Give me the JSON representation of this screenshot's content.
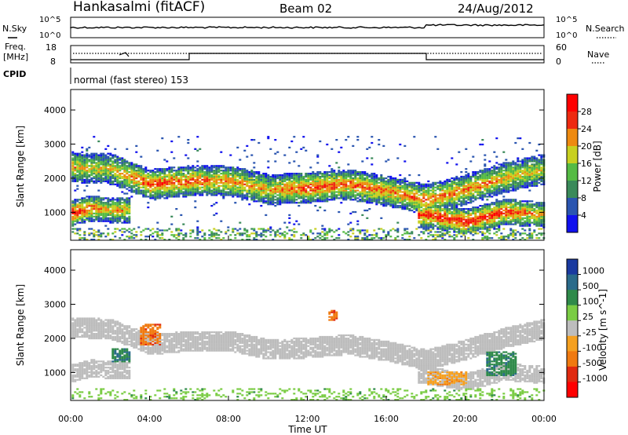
{
  "header": {
    "radar": "Hankasalmi (fitACF)",
    "beam": "Beam 02",
    "date": "24/Aug/2012"
  },
  "noise_panel": {
    "left_label": "N.Sky",
    "right_label": "N.Search",
    "left_ticks": [
      "10^5",
      "10^0"
    ],
    "right_ticks": [
      "10^5",
      "10^0"
    ]
  },
  "freq_panel": {
    "left_label_1": "Freq.",
    "left_label_2": "[MHz]",
    "left_ticks": [
      "18",
      "8"
    ],
    "right_label": "Nave",
    "right_ticks": [
      "60",
      "0"
    ]
  },
  "cpid": {
    "label": "CPID",
    "text": "normal (fast stereo) 153"
  },
  "axes": {
    "ylabel": "Slant Range [km]",
    "xlabel": "Time UT",
    "yticks": [
      "1000",
      "2000",
      "3000",
      "4000"
    ],
    "xticks": [
      "00:00",
      "04:00",
      "08:00",
      "12:00",
      "16:00",
      "20:00",
      "00:00"
    ]
  },
  "power_scale": {
    "title": "Power [dB]",
    "ticks": [
      "4",
      "8",
      "12",
      "16",
      "20",
      "24",
      "28"
    ],
    "colors": [
      "#1010ee",
      "#2a55b0",
      "#3a8a5a",
      "#55bb44",
      "#c8d020",
      "#ee8a10",
      "#ee2a10",
      "#ff0000"
    ]
  },
  "velocity_scale": {
    "title": "Velocity [m s^-1]",
    "ticks": [
      "1000",
      "500",
      "100",
      "25",
      "-25",
      "-100",
      "-500",
      "-1000"
    ],
    "colors": [
      "#1a3aa0",
      "#2a6a8a",
      "#2f8a4a",
      "#7acc44",
      "#bdbdbd",
      "#f5a020",
      "#f07a10",
      "#e02a10",
      "#ff0000"
    ]
  },
  "chart_data": [
    {
      "type": "heatmap",
      "title": "Power [dB]",
      "xlabel": "Time UT",
      "ylabel": "Slant Range [km]",
      "xlim": [
        0,
        24
      ],
      "ylim": [
        180,
        4600
      ],
      "colorbar_range": [
        0,
        30
      ],
      "main_band": {
        "hours": [
          0,
          2,
          4,
          6,
          8,
          10,
          12,
          14,
          16,
          18,
          20,
          22,
          24
        ],
        "center_km": [
          2300,
          2250,
          1800,
          1900,
          1900,
          1650,
          1700,
          1800,
          1600,
          1350,
          1650,
          2000,
          2250
        ],
        "peak_power_db": [
          20,
          18,
          26,
          24,
          22,
          20,
          26,
          24,
          22,
          24,
          22,
          20,
          18
        ]
      },
      "lower_band": {
        "hours": [
          0,
          1,
          2,
          18,
          20,
          22,
          24
        ],
        "center_km": [
          950,
          1100,
          1050,
          900,
          700,
          1000,
          900
        ],
        "peak_power_db": [
          28,
          24,
          20,
          26,
          28,
          26,
          20
        ]
      }
    },
    {
      "type": "heatmap",
      "title": "Velocity [m s^-1]",
      "xlabel": "Time UT",
      "ylabel": "Slant Range [km]",
      "xlim": [
        0,
        24
      ],
      "ylim": [
        180,
        4600
      ],
      "colorbar_ticks": [
        1000,
        500,
        100,
        25,
        -25,
        -100,
        -500,
        -1000
      ],
      "dominant_velocity": "-25 to 25 (ground scatter)",
      "features": [
        {
          "hours": [
            3.5,
            4.5
          ],
          "range_km": [
            1800,
            2400
          ],
          "velocity": -500
        },
        {
          "hours": [
            2,
            3
          ],
          "range_km": [
            1300,
            1700
          ],
          "velocity": 500
        },
        {
          "hours": [
            18,
            20
          ],
          "range_km": [
            600,
            1000
          ],
          "velocity": -100
        },
        {
          "hours": [
            21,
            22.5
          ],
          "range_km": [
            900,
            1600
          ],
          "velocity": 500
        },
        {
          "hours": [
            13,
            13.5
          ],
          "range_km": [
            2500,
            2800
          ],
          "velocity": -500
        }
      ]
    }
  ]
}
